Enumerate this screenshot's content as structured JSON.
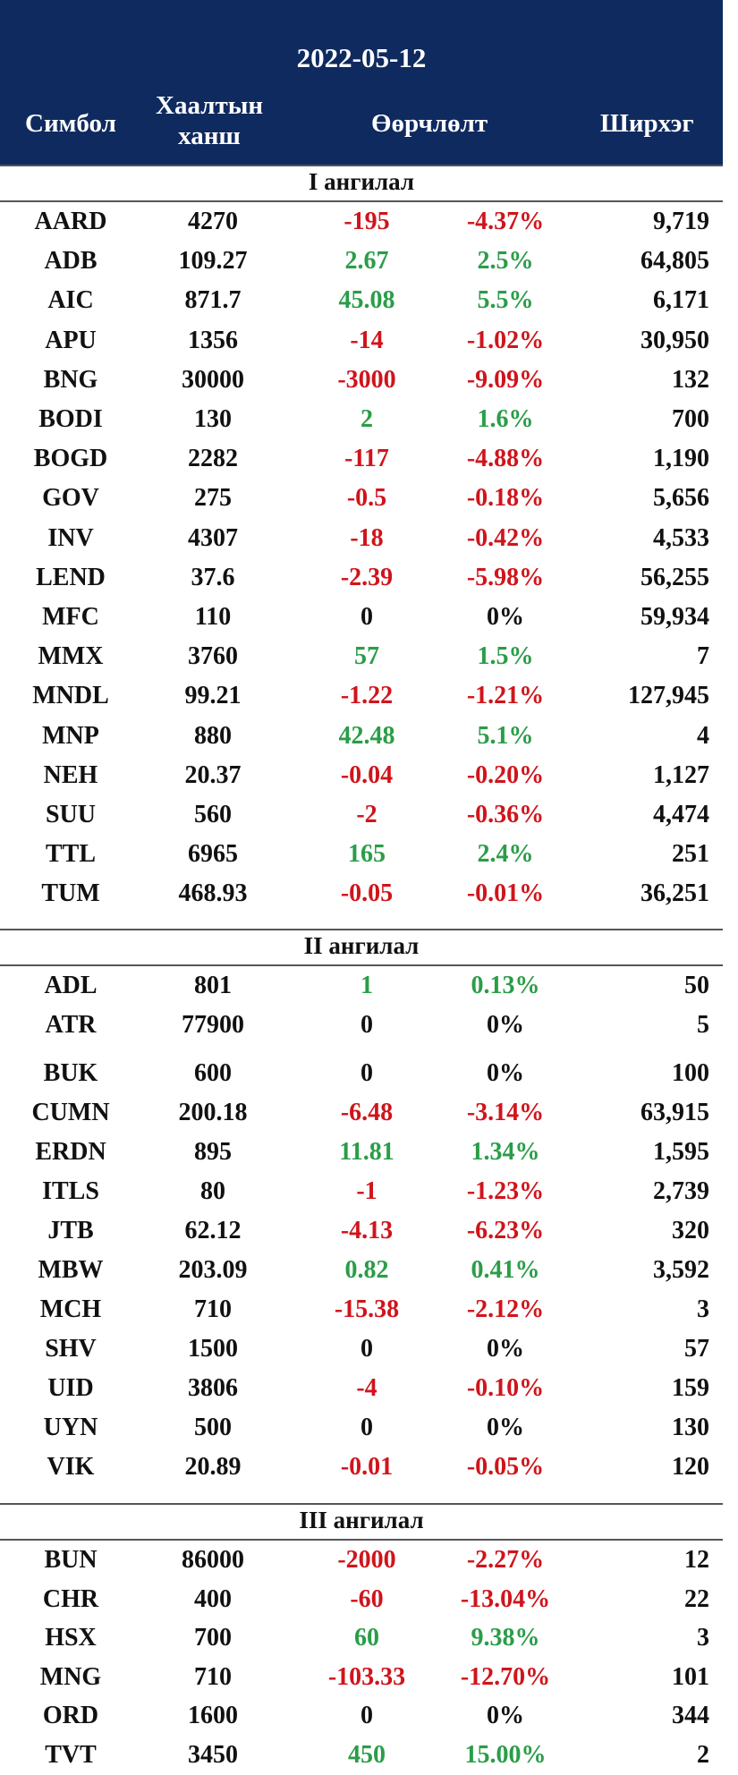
{
  "header": {
    "date": "2022-05-12",
    "col_symbol": "Симбол",
    "col_close": "Хаалтын ханш",
    "col_change": "Өөрчлөлт",
    "col_volume": "Ширхэг"
  },
  "sections": [
    {
      "title": "I ангилал",
      "rows": [
        {
          "symbol": "AARD",
          "close": "4270",
          "change": "-195",
          "pct": "-4.37%",
          "volume": "9,719",
          "dir": "down"
        },
        {
          "symbol": "ADB",
          "close": "109.27",
          "change": "2.67",
          "pct": "2.5%",
          "volume": "64,805",
          "dir": "up"
        },
        {
          "symbol": "AIC",
          "close": "871.7",
          "change": "45.08",
          "pct": "5.5%",
          "volume": "6,171",
          "dir": "up"
        },
        {
          "symbol": "APU",
          "close": "1356",
          "change": "-14",
          "pct": "-1.02%",
          "volume": "30,950",
          "dir": "down"
        },
        {
          "symbol": "BNG",
          "close": "30000",
          "change": "-3000",
          "pct": "-9.09%",
          "volume": "132",
          "dir": "down"
        },
        {
          "symbol": "BODI",
          "close": "130",
          "change": "2",
          "pct": "1.6%",
          "volume": "700",
          "dir": "up"
        },
        {
          "symbol": "BOGD",
          "close": "2282",
          "change": "-117",
          "pct": "-4.88%",
          "volume": "1,190",
          "dir": "down"
        },
        {
          "symbol": "GOV",
          "close": "275",
          "change": "-0.5",
          "pct": "-0.18%",
          "volume": "5,656",
          "dir": "down"
        },
        {
          "symbol": "INV",
          "close": "4307",
          "change": "-18",
          "pct": "-0.42%",
          "volume": "4,533",
          "dir": "down"
        },
        {
          "symbol": "LEND",
          "close": "37.6",
          "change": "-2.39",
          "pct": "-5.98%",
          "volume": "56,255",
          "dir": "down"
        },
        {
          "symbol": "MFC",
          "close": "110",
          "change": "0",
          "pct": "0%",
          "volume": "59,934",
          "dir": "flat"
        },
        {
          "symbol": "MMX",
          "close": "3760",
          "change": "57",
          "pct": "1.5%",
          "volume": "7",
          "dir": "up"
        },
        {
          "symbol": "MNDL",
          "close": "99.21",
          "change": "-1.22",
          "pct": "-1.21%",
          "volume": "127,945",
          "dir": "down"
        },
        {
          "symbol": "MNP",
          "close": "880",
          "change": "42.48",
          "pct": "5.1%",
          "volume": "4",
          "dir": "up"
        },
        {
          "symbol": "NEH",
          "close": "20.37",
          "change": "-0.04",
          "pct": "-0.20%",
          "volume": "1,127",
          "dir": "down"
        },
        {
          "symbol": "SUU",
          "close": "560",
          "change": "-2",
          "pct": "-0.36%",
          "volume": "4,474",
          "dir": "down"
        },
        {
          "symbol": "TTL",
          "close": "6965",
          "change": "165",
          "pct": "2.4%",
          "volume": "251",
          "dir": "up"
        },
        {
          "symbol": "TUM",
          "close": "468.93",
          "change": "-0.05",
          "pct": "-0.01%",
          "volume": "36,251",
          "dir": "down"
        }
      ]
    },
    {
      "title": "II ангилал",
      "rows": [
        {
          "symbol": "ADL",
          "close": "801",
          "change": "1",
          "pct": "0.13%",
          "volume": "50",
          "dir": "up"
        },
        {
          "symbol": "ATR",
          "close": "77900",
          "change": "0",
          "pct": "0%",
          "volume": "5",
          "dir": "flat"
        },
        {
          "symbol": "BUK",
          "close": "600",
          "change": "0",
          "pct": "0%",
          "volume": "100",
          "dir": "flat"
        },
        {
          "symbol": "CUMN",
          "close": "200.18",
          "change": "-6.48",
          "pct": "-3.14%",
          "volume": "63,915",
          "dir": "down"
        },
        {
          "symbol": "ERDN",
          "close": "895",
          "change": "11.81",
          "pct": "1.34%",
          "volume": "1,595",
          "dir": "up"
        },
        {
          "symbol": "ITLS",
          "close": "80",
          "change": "-1",
          "pct": "-1.23%",
          "volume": "2,739",
          "dir": "down"
        },
        {
          "symbol": "JTB",
          "close": "62.12",
          "change": "-4.13",
          "pct": "-6.23%",
          "volume": "320",
          "dir": "down"
        },
        {
          "symbol": "MBW",
          "close": "203.09",
          "change": "0.82",
          "pct": "0.41%",
          "volume": "3,592",
          "dir": "up"
        },
        {
          "symbol": "MCH",
          "close": "710",
          "change": "-15.38",
          "pct": "-2.12%",
          "volume": "3",
          "dir": "down"
        },
        {
          "symbol": "SHV",
          "close": "1500",
          "change": "0",
          "pct": "0%",
          "volume": "57",
          "dir": "flat"
        },
        {
          "symbol": "UID",
          "close": "3806",
          "change": "-4",
          "pct": "-0.10%",
          "volume": "159",
          "dir": "down"
        },
        {
          "symbol": "UYN",
          "close": "500",
          "change": "0",
          "pct": "0%",
          "volume": "130",
          "dir": "flat"
        },
        {
          "symbol": "VIK",
          "close": "20.89",
          "change": "-0.01",
          "pct": "-0.05%",
          "volume": "120",
          "dir": "down"
        }
      ]
    },
    {
      "title": "III ангилал",
      "rows": [
        {
          "symbol": "BUN",
          "close": "86000",
          "change": "-2000",
          "pct": "-2.27%",
          "volume": "12",
          "dir": "down"
        },
        {
          "symbol": "CHR",
          "close": "400",
          "change": "-60",
          "pct": "-13.04%",
          "volume": "22",
          "dir": "down"
        },
        {
          "symbol": "HSX",
          "close": "700",
          "change": "60",
          "pct": "9.38%",
          "volume": "3",
          "dir": "up"
        },
        {
          "symbol": "MNG",
          "close": "710",
          "change": "-103.33",
          "pct": "-12.70%",
          "volume": "101",
          "dir": "down"
        },
        {
          "symbol": "ORD",
          "close": "1600",
          "change": "0",
          "pct": "0%",
          "volume": "344",
          "dir": "flat"
        },
        {
          "symbol": "TVT",
          "close": "3450",
          "change": "450",
          "pct": "15.00%",
          "volume": "2",
          "dir": "up"
        }
      ]
    }
  ],
  "colors": {
    "header_bg": "#0f2a5f",
    "up": "#2a9d48",
    "down": "#d0141b",
    "flat": "#111111"
  }
}
